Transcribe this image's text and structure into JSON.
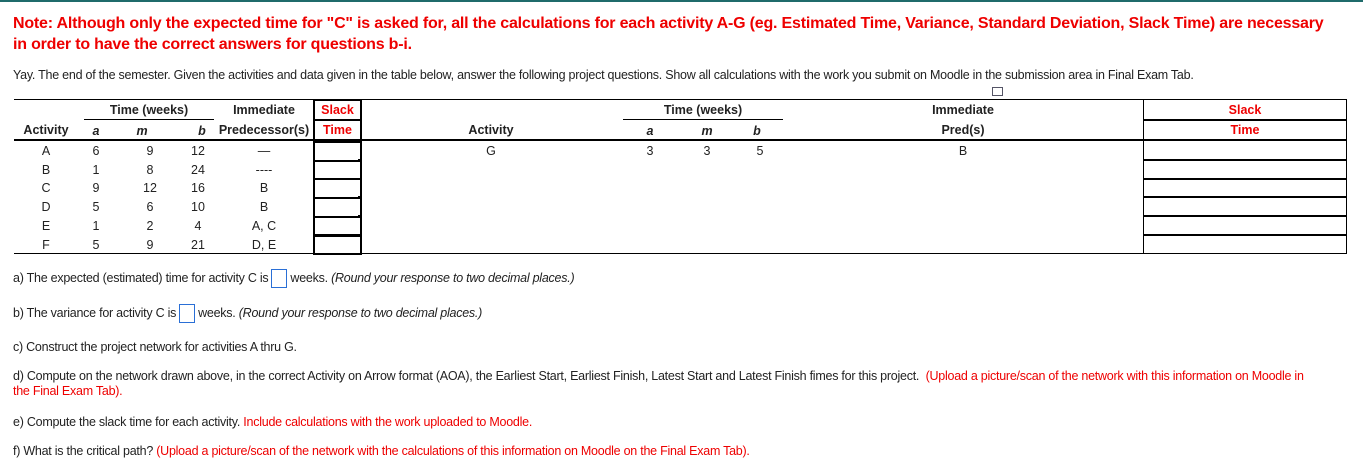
{
  "note": "Note: Although only the expected time for \"C\" is asked for, all the calculations for each activity A-G (eg. Estimated Time,  Variance, Standard Deviation, Slack Time) are necessary in order to have the correct answers for questions b-i.",
  "intro": "Yay.  The end of the semester.  Given the activities and data given in the table below, answer the following project questions.  Show all calculations with the work you submit on Moodle in the submission area in Final Exam Tab.",
  "left_table": {
    "headers": {
      "time": "Time (weeks)",
      "activity": "Activity",
      "a": "a",
      "m": "m",
      "b": "b",
      "pred1": "Immediate",
      "pred2": "Predecessor(s)",
      "slack1": "Slack",
      "slack2": "Time"
    },
    "rows": [
      {
        "activity": "A",
        "a": "6",
        "m": "9",
        "b": "12",
        "pred": "—"
      },
      {
        "activity": "B",
        "a": "1",
        "m": "8",
        "b": "24",
        "pred": "----"
      },
      {
        "activity": "C",
        "a": "9",
        "m": "12",
        "b": "16",
        "pred": "B"
      },
      {
        "activity": "D",
        "a": "5",
        "m": "6",
        "b": "10",
        "pred": "B"
      },
      {
        "activity": "E",
        "a": "1",
        "m": "2",
        "b": "4",
        "pred": "A, C"
      },
      {
        "activity": "F",
        "a": "5",
        "m": "9",
        "b": "21",
        "pred": "D, E"
      }
    ]
  },
  "right_table": {
    "headers": {
      "time": "Time (weeks)",
      "activity": "Activity",
      "a": "a",
      "m": "m",
      "b": "b",
      "pred1": "Immediate",
      "pred2": "Pred(s)",
      "slack1": "Slack",
      "slack2": "Time"
    },
    "rows": [
      {
        "activity": "G",
        "a": "3",
        "m": "3",
        "b": "5",
        "pred": "B"
      }
    ]
  },
  "questions": {
    "a_pre": "a) The expected (estimated) time for activity C is",
    "a_post": "weeks.",
    "a_hint": "(Round your response to two decimal places.)",
    "b_pre": "b) The variance for activity C is",
    "b_post": "weeks.",
    "b_hint": "(Round your response to two decimal places.)",
    "c": "c) Construct the project network for activities A thru G.",
    "d": "d) Compute on the network drawn above, in the correct Activity on Arrow format (AOA), the Earliest Start, Earliest Finish, Latest Start and Latest Finish fimes for this project.",
    "d_red": "(Upload a picture/scan of the network with this information  on Moodle in the Final Exam Tab).",
    "e": "e) Compute the slack time for each activity.",
    "e_red": "Include calculations with the work uploaded to Moodle.",
    "f": "f) What is the critical path?",
    "f_red": "(Upload a picture/scan of the network with the calculations of this information  on Moodle on the Final Exam Tab)."
  },
  "answers": {
    "a": "",
    "b": ""
  }
}
